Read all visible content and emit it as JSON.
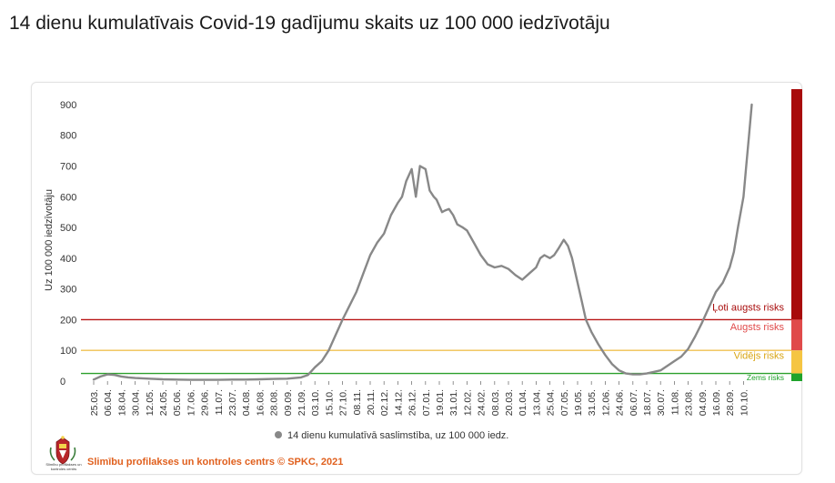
{
  "title": "14 dienu kumulatīvais Covid-19 gadījumu skaits uz 100 000 iedzīvotāju",
  "footer": {
    "text": "Slimību profilakses un kontroles centrs © SPKC, 2021",
    "color": "#e0601e",
    "logo_caption": "Slimību profilakses un kontroles centrs"
  },
  "colors": {
    "series": "#888888",
    "very_high": "#a80b0b",
    "high": "#e04a4a",
    "medium": "#f5c542",
    "low": "#1fa32b"
  },
  "chart_data": {
    "type": "line",
    "title": "14 dienu kumulatīvais Covid-19 gadījumu skaits uz 100 000 iedzīvotāju",
    "xlabel": "",
    "ylabel": "Uz 100 000 iedzīvotāju",
    "ylim": [
      0,
      950
    ],
    "y_ticks": [
      0,
      100,
      200,
      300,
      400,
      500,
      600,
      700,
      800,
      900
    ],
    "x_ticks": [
      "25.03.",
      "06.04.",
      "18.04.",
      "30.04.",
      "12.05.",
      "24.05.",
      "05.06.",
      "17.06.",
      "29.06.",
      "11.07.",
      "23.07.",
      "04.08.",
      "16.08.",
      "28.08.",
      "09.09.",
      "21.09.",
      "03.10.",
      "15.10.",
      "27.10.",
      "08.11.",
      "20.11.",
      "02.12.",
      "14.12.",
      "26.12.",
      "07.01.",
      "19.01.",
      "31.01.",
      "12.02.",
      "24.02.",
      "08.03.",
      "20.03.",
      "01.04.",
      "13.04.",
      "25.04.",
      "07.05.",
      "19.05.",
      "31.05.",
      "12.06.",
      "24.06.",
      "06.07.",
      "18.07.",
      "30.07.",
      "11.08.",
      "23.08.",
      "04.09.",
      "16.09.",
      "28.09.",
      "10.10."
    ],
    "grid": false,
    "legend": "bottom",
    "series": [
      {
        "name": "14 dienu kumulatīvā saslimstība, uz 100 000 iedz.",
        "x_index": [
          0,
          0.5,
          1,
          1.5,
          2,
          2.5,
          3,
          4,
          5,
          6,
          7,
          8,
          9,
          10,
          11,
          12,
          13,
          14,
          15,
          15.5,
          16,
          16.5,
          17,
          17.5,
          18,
          18.5,
          19,
          19.5,
          20,
          20.5,
          21,
          21.5,
          22,
          22.3,
          22.6,
          23,
          23.3,
          23.6,
          24,
          24.3,
          24.6,
          24.8,
          25,
          25.2,
          25.4,
          25.7,
          26,
          26.3,
          26.7,
          27,
          27.5,
          28,
          28.5,
          29,
          29.5,
          30,
          30.5,
          31,
          31.5,
          32,
          32.3,
          32.6,
          33,
          33.3,
          33.6,
          34,
          34.3,
          34.6,
          35,
          35.3,
          35.6,
          36,
          36.5,
          37,
          37.5,
          38,
          38.5,
          39,
          39.5,
          40,
          40.5,
          41,
          41.5,
          42,
          42.5,
          43,
          43.5,
          44,
          44.5,
          45,
          45.5,
          46,
          46.3,
          46.6,
          47,
          47.2,
          47.4,
          47.6
        ],
        "values": [
          5,
          15,
          22,
          20,
          15,
          12,
          10,
          8,
          6,
          5,
          4,
          4,
          4,
          5,
          5,
          6,
          7,
          8,
          12,
          20,
          45,
          65,
          100,
          150,
          200,
          245,
          290,
          350,
          410,
          450,
          480,
          540,
          580,
          600,
          650,
          690,
          600,
          700,
          690,
          620,
          600,
          590,
          570,
          550,
          555,
          560,
          540,
          510,
          500,
          490,
          450,
          410,
          380,
          370,
          375,
          365,
          345,
          330,
          350,
          370,
          400,
          410,
          400,
          410,
          430,
          460,
          440,
          400,
          320,
          260,
          200,
          160,
          120,
          85,
          55,
          35,
          25,
          22,
          22,
          25,
          30,
          35,
          50,
          65,
          80,
          105,
          145,
          190,
          240,
          290,
          320,
          370,
          420,
          500,
          600,
          700,
          800,
          900
        ]
      }
    ],
    "thresholds": [
      {
        "label": "Ļoti augsts risks",
        "from": 200,
        "to": 950,
        "line": 200,
        "color": "#a80b0b",
        "line_color": "#b81414"
      },
      {
        "label": "Augsts risks",
        "from": 100,
        "to": 200,
        "line": 100,
        "color": "#e04a4a",
        "line_color": "#f0c050"
      },
      {
        "label": "Vidējs risks",
        "from": 25,
        "to": 100,
        "line": 25,
        "color": "#f5c542",
        "line_color": "#2ca02c"
      },
      {
        "label": "Zems risks",
        "from": 0,
        "to": 25,
        "color": "#1fa32b"
      }
    ]
  }
}
